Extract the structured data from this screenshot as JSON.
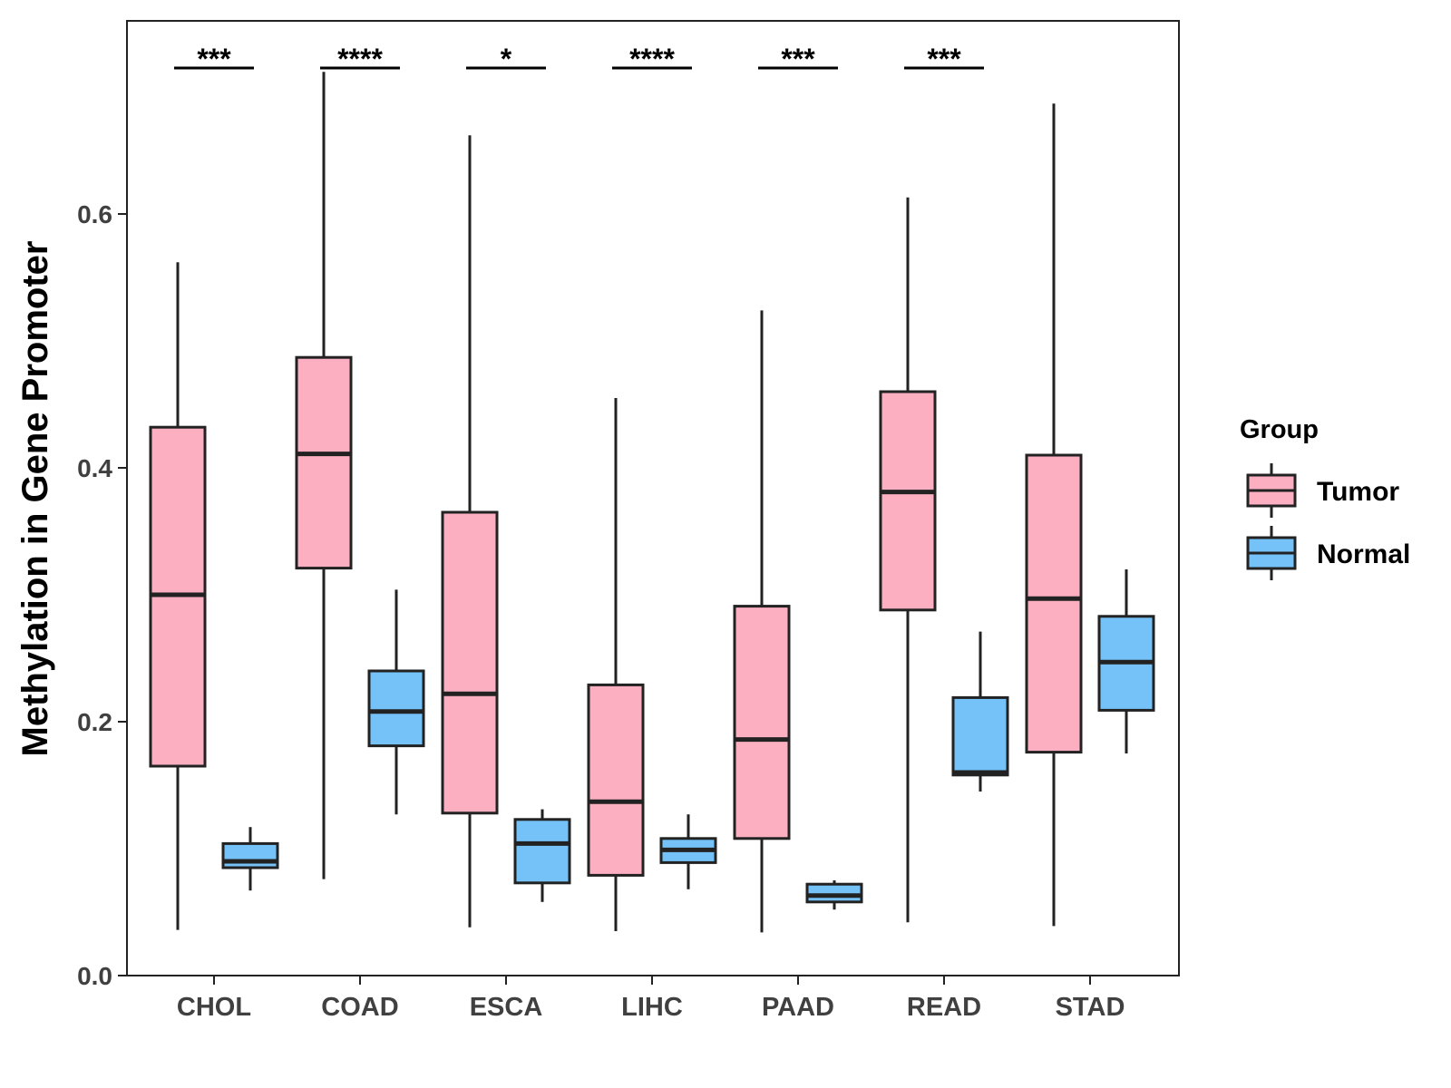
{
  "chart_data": {
    "type": "boxplot",
    "title": "",
    "xlabel": "",
    "ylabel": "Methylation in Gene Promoter",
    "ylim": [
      0.0,
      0.75
    ],
    "yticks": [
      0.0,
      0.2,
      0.4,
      0.6
    ],
    "ytick_labels": [
      "0.0",
      "0.2",
      "0.4",
      "0.6"
    ],
    "grid": false,
    "categories": [
      "CHOL",
      "COAD",
      "ESCA",
      "LIHC",
      "PAAD",
      "READ",
      "STAD"
    ],
    "series": [
      {
        "name": "Tumor",
        "color": "#FBAFC1",
        "boxes": [
          {
            "min": 0.036,
            "q1": 0.165,
            "median": 0.3,
            "q3": 0.432,
            "max": 0.562
          },
          {
            "min": 0.076,
            "q1": 0.321,
            "median": 0.411,
            "q3": 0.487,
            "max": 0.712
          },
          {
            "min": 0.038,
            "q1": 0.128,
            "median": 0.222,
            "q3": 0.365,
            "max": 0.662
          },
          {
            "min": 0.035,
            "q1": 0.079,
            "median": 0.137,
            "q3": 0.229,
            "max": 0.455
          },
          {
            "min": 0.034,
            "q1": 0.108,
            "median": 0.186,
            "q3": 0.291,
            "max": 0.524
          },
          {
            "min": 0.042,
            "q1": 0.288,
            "median": 0.381,
            "q3": 0.46,
            "max": 0.613
          },
          {
            "min": 0.039,
            "q1": 0.176,
            "median": 0.297,
            "q3": 0.41,
            "max": 0.687
          }
        ]
      },
      {
        "name": "Normal",
        "color": "#74C2F8",
        "boxes": [
          {
            "min": 0.067,
            "q1": 0.085,
            "median": 0.09,
            "q3": 0.104,
            "max": 0.117
          },
          {
            "min": 0.127,
            "q1": 0.181,
            "median": 0.208,
            "q3": 0.24,
            "max": 0.304
          },
          {
            "min": 0.058,
            "q1": 0.073,
            "median": 0.104,
            "q3": 0.123,
            "max": 0.131
          },
          {
            "min": 0.068,
            "q1": 0.089,
            "median": 0.099,
            "q3": 0.108,
            "max": 0.127
          },
          {
            "min": 0.052,
            "q1": 0.058,
            "median": 0.063,
            "q3": 0.072,
            "max": 0.075
          },
          {
            "min": 0.145,
            "q1": 0.158,
            "median": 0.16,
            "q3": 0.219,
            "max": 0.271
          },
          {
            "min": 0.175,
            "q1": 0.209,
            "median": 0.247,
            "q3": 0.283,
            "max": 0.32
          }
        ]
      }
    ],
    "significance": [
      {
        "category": "CHOL",
        "label": "***"
      },
      {
        "category": "COAD",
        "label": "****"
      },
      {
        "category": "ESCA",
        "label": "*"
      },
      {
        "category": "LIHC",
        "label": "****"
      },
      {
        "category": "PAAD",
        "label": "***"
      },
      {
        "category": "READ",
        "label": "***"
      }
    ],
    "legend": {
      "title": "Group",
      "position": "right",
      "entries": [
        "Tumor",
        "Normal"
      ]
    }
  }
}
